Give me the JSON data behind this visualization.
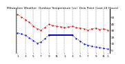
{
  "title": "Milwaukee Weather  Outdoor Temperature (vs)  Dew Point (Last 24 Hours)",
  "background_color": "#ffffff",
  "plot_bg_color": "#ffffff",
  "grid_color": "#888888",
  "temp_color": "#cc0000",
  "dew_color": "#0000cc",
  "temp_data": [
    54,
    50,
    46,
    42,
    36,
    32,
    30,
    34,
    39,
    37,
    36,
    35,
    34,
    35,
    36,
    34,
    33,
    32,
    30,
    32,
    33,
    31,
    32,
    30
  ],
  "dew_data": [
    26,
    24,
    22,
    18,
    14,
    10,
    12,
    17,
    22,
    22,
    22,
    22,
    22,
    22,
    22,
    17,
    13,
    9,
    7,
    5,
    4,
    3,
    2,
    1
  ],
  "flat_start": 8,
  "flat_end": 14,
  "n_points": 24,
  "ylim": [
    -5,
    62
  ],
  "yticks": [
    0,
    10,
    20,
    30,
    40,
    50
  ],
  "ytick_labels": [
    "0",
    "10",
    "20",
    "30",
    "40",
    "50"
  ],
  "x_tick_positions": [
    0,
    2,
    4,
    6,
    8,
    10,
    12,
    14,
    16,
    18,
    20,
    22,
    23
  ],
  "x_labels": [
    "1",
    "3",
    "5",
    "7",
    "9",
    "11",
    "1",
    "3",
    "5",
    "7",
    "9",
    "11",
    "1"
  ],
  "ylabel_fontsize": 3.0,
  "xlabel_fontsize": 3.0,
  "title_fontsize": 3.2,
  "linewidth": 0.7,
  "flat_linewidth": 1.4,
  "markersize": 1.2,
  "grid_linewidth": 0.35
}
